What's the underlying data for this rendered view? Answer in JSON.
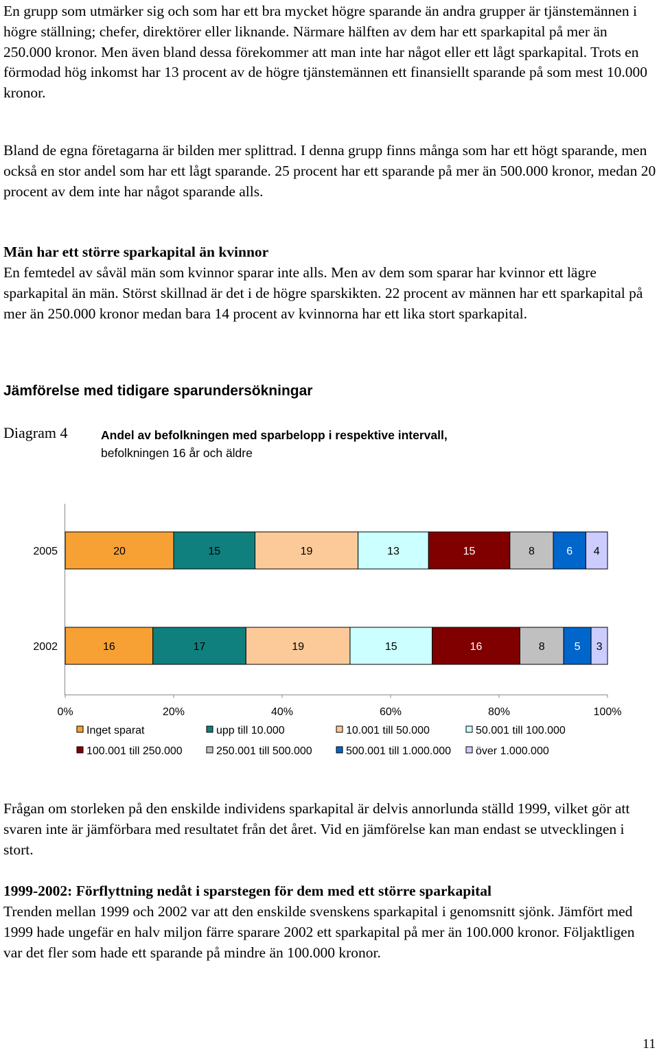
{
  "paragraphs_top": [
    "En grupp som utmärker sig och som har ett bra mycket högre sparande än andra grupper är tjänstemännen i högre ställning; chefer, direktörer eller liknande. Närmare hälften av dem har ett sparkapital på mer än 250.000 kronor. Men även bland dessa förekommer att man inte har något eller ett lågt sparkapital. Trots en förmodad hög inkomst har 13 procent av de högre tjänstemännen ett finansiellt sparande på som mest 10.000 kronor.",
    "Bland de egna företagarna är bilden mer splittrad. I denna grupp finns många som har ett högt sparande, men också en stor andel som har ett lågt sparande. 25 procent har ett sparande på mer än 500.000 kronor, medan 20 procent av dem inte har något sparande alls."
  ],
  "section_gender": {
    "heading": "Män har ett större sparkapital än kvinnor",
    "text": "En femtedel av såväl män som kvinnor sparar inte alls. Men av dem som sparar har kvinnor ett lägre sparkapital än män. Störst skillnad är det i de högre sparskikten. 22 procent av männen har ett sparkapital på mer än 250.000 kronor medan bara 14 procent av kvinnorna har ett lika stort sparkapital."
  },
  "section_comparison": {
    "heading": "Jämförelse med tidigare sparundersökningar",
    "diagram_label": "Diagram 4",
    "diagram_title_line1": "Andel av befolkningen med sparbelopp i respektive intervall,",
    "diagram_title_line2": "befolkningen 16 år och äldre"
  },
  "chart_data": {
    "type": "bar",
    "orientation": "horizontal",
    "stacked": true,
    "categories": [
      "2005",
      "2002"
    ],
    "x_ticks": [
      "0%",
      "20%",
      "40%",
      "60%",
      "80%",
      "100%"
    ],
    "xlim": [
      0,
      100
    ],
    "legend_placement": "bottom",
    "series": [
      {
        "name": "Inget sparat",
        "color": "#F7A135",
        "values": [
          20,
          16
        ]
      },
      {
        "name": "upp till 10.000",
        "color": "#0F807E",
        "values": [
          15,
          17
        ]
      },
      {
        "name": "10.001 till 50.000",
        "color": "#FCCA98",
        "values": [
          19,
          19
        ]
      },
      {
        "name": "50.001 till 100.000",
        "color": "#CCFFFF",
        "values": [
          13,
          15
        ]
      },
      {
        "name": "100.001 till 250.000",
        "color": "#800000",
        "values": [
          15,
          16
        ]
      },
      {
        "name": "250.001 till 500.000",
        "color": "#C0C0C0",
        "values": [
          8,
          8
        ]
      },
      {
        "name": "500.001 till 1.000.000",
        "color": "#0066CC",
        "values": [
          6,
          5
        ]
      },
      {
        "name": "över 1.000.000",
        "color": "#CCCCFF",
        "values": [
          4,
          3
        ]
      }
    ],
    "label_colors": [
      "#000000",
      "#000000",
      "#000000",
      "#000000",
      "#FFFFFF",
      "#000000",
      "#FFFFFF",
      "#000000"
    ]
  },
  "paragraph_after": "Frågan om storleken på den enskilde individens sparkapital är delvis annorlunda ställd 1999, vilket gör att svaren inte är jämförbara med resultatet från det året. Vid en jämförelse kan man endast se utvecklingen i stort.",
  "section_trend": {
    "heading": "1999-2002: Förflyttning nedåt i sparstegen för dem med ett större sparkapital",
    "text": "Trenden mellan 1999 och 2002 var att den enskilde svenskens sparkapital i genomsnitt sjönk. Jämfört med 1999 hade ungefär en halv miljon färre sparare 2002 ett sparkapital på mer än 100.000 kronor. Följaktligen var det fler som hade ett sparande på mindre än 100.000 kronor."
  },
  "page_number": "11"
}
